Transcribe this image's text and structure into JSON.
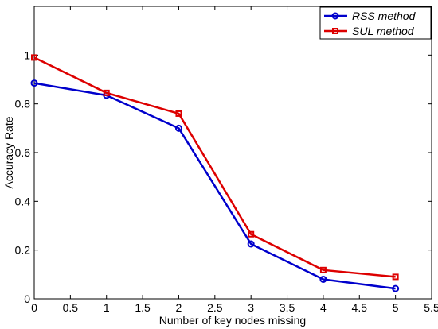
{
  "chart_data": {
    "type": "line",
    "title": "",
    "xlabel": "Number of key nodes missing",
    "ylabel": "Accuracy Rate",
    "xlim": [
      0,
      5.5
    ],
    "ylim": [
      0,
      1.2
    ],
    "x_ticks": [
      0,
      0.5,
      1,
      1.5,
      2,
      2.5,
      3,
      3.5,
      4,
      4.5,
      5,
      5.5
    ],
    "x_tick_labels": [
      "0",
      "0.5",
      "1",
      "1.5",
      "2",
      "2.5",
      "3",
      "3.5",
      "4",
      "4.5",
      "5",
      "5.5"
    ],
    "y_ticks": [
      0,
      0.2,
      0.4,
      0.6,
      0.8,
      1
    ],
    "y_tick_labels": [
      "0",
      "0.2",
      "0.4",
      "0.6",
      "0.8",
      "1"
    ],
    "grid": false,
    "legend_position": "top-right",
    "x": [
      0,
      1,
      2,
      3,
      4,
      5
    ],
    "series": [
      {
        "name": "RSS method",
        "color": "#0000cc",
        "marker": "circle",
        "values": [
          0.885,
          0.835,
          0.7,
          0.225,
          0.08,
          0.042
        ]
      },
      {
        "name": "SUL method",
        "color": "#dd0000",
        "marker": "square",
        "values": [
          0.99,
          0.845,
          0.76,
          0.265,
          0.118,
          0.09
        ]
      }
    ]
  }
}
